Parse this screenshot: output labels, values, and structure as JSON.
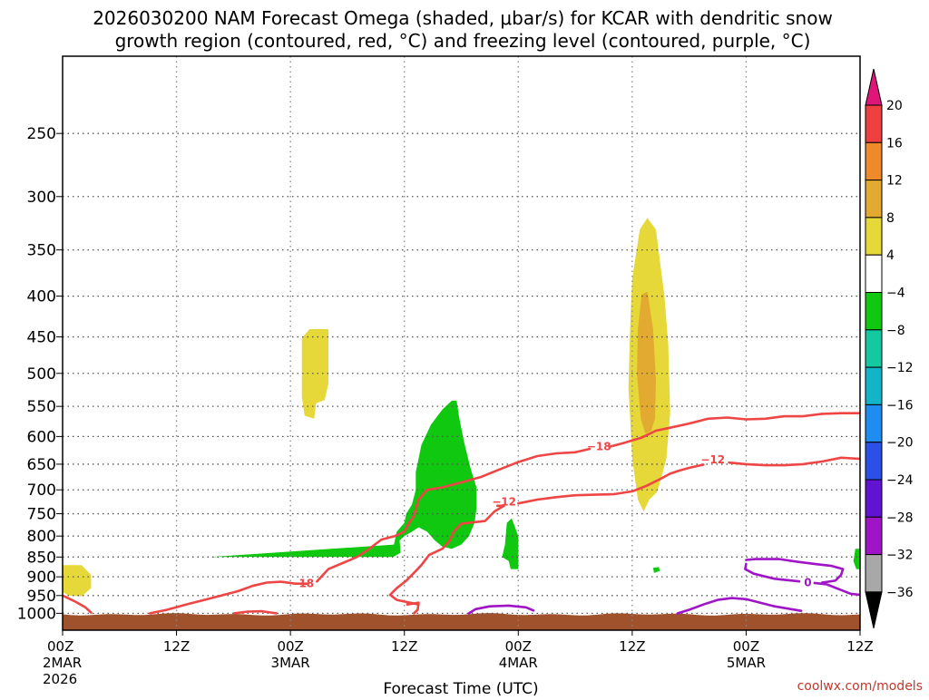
{
  "title": {
    "line1": "2026030200 NAM Forecast Omega (shaded, μbar/s) for KCAR with dendritic snow",
    "line2": "growth region (contoured, red, °C) and freezing level (contoured, purple, °C)"
  },
  "credit": "coolwx.com/models",
  "chart_data": {
    "type": "heatmap",
    "xlabel": "Forecast Time (UTC)",
    "ylabel": "",
    "x_hours_range": [
      0,
      84
    ],
    "y_pressure_range_hPa": [
      1050,
      200
    ],
    "y_scale": "log",
    "grid": true,
    "y_ticks": [
      250,
      300,
      350,
      400,
      450,
      500,
      550,
      600,
      650,
      700,
      750,
      800,
      850,
      900,
      950,
      1000
    ],
    "x_ticks": [
      {
        "hour": 0,
        "label": "00Z",
        "sub1": "2MAR",
        "sub2": "2026"
      },
      {
        "hour": 12,
        "label": "12Z",
        "sub1": "",
        "sub2": ""
      },
      {
        "hour": 24,
        "label": "00Z",
        "sub1": "3MAR",
        "sub2": ""
      },
      {
        "hour": 36,
        "label": "12Z",
        "sub1": "",
        "sub2": ""
      },
      {
        "hour": 48,
        "label": "00Z",
        "sub1": "4MAR",
        "sub2": ""
      },
      {
        "hour": 60,
        "label": "12Z",
        "sub1": "",
        "sub2": ""
      },
      {
        "hour": 72,
        "label": "00Z",
        "sub1": "5MAR",
        "sub2": ""
      },
      {
        "hour": 84,
        "label": "12Z",
        "sub1": "",
        "sub2": ""
      }
    ],
    "colorbar": {
      "labels": [
        "20",
        "16",
        "12",
        "8",
        "4",
        "−4",
        "−8",
        "−12",
        "−16",
        "−20",
        "−24",
        "−28",
        "−32",
        "−36"
      ],
      "colors": [
        "#ee4040",
        "#ee8a2a",
        "#e2aa30",
        "#e6d838",
        "#ffffff",
        "#0fc80f",
        "#14c8a0",
        "#12b4c8",
        "#1e8cf0",
        "#2a50e6",
        "#6014d2",
        "#a014c8",
        "#a8a8a8"
      ],
      "top_arrow_color": "#e0157a",
      "bottom_arrow_color": "#000000"
    },
    "contour_labels": [
      {
        "text": "−18",
        "hour": 25.2,
        "p": 918,
        "color": "#ee4545"
      },
      {
        "text": "−12",
        "hour": 46.5,
        "p": 725,
        "color": "#ee4545"
      },
      {
        "text": "−18",
        "hour": 56.5,
        "p": 618,
        "color": "#ee4545"
      },
      {
        "text": "−12",
        "hour": 68.5,
        "p": 642,
        "color": "#ee4545"
      },
      {
        "text": "0",
        "hour": 78.5,
        "p": 915,
        "color": "#a014c8"
      }
    ],
    "shaded_regions": [
      {
        "color": "#e6d838",
        "points": [
          [
            25.2,
            452
          ],
          [
            26.0,
            440
          ],
          [
            28.0,
            440
          ],
          [
            28.0,
            515
          ],
          [
            27.6,
            540
          ],
          [
            26.7,
            545
          ],
          [
            26.5,
            570
          ],
          [
            25.5,
            565
          ],
          [
            25.2,
            536
          ]
        ]
      },
      {
        "color": "#e6d838",
        "points": [
          [
            0,
            870
          ],
          [
            2.0,
            870
          ],
          [
            3.0,
            895
          ],
          [
            3.0,
            930
          ],
          [
            2.0,
            952
          ],
          [
            0.6,
            950
          ],
          [
            0,
            940
          ]
        ]
      },
      {
        "color": "#e6d838",
        "points": [
          [
            60.8,
            330
          ],
          [
            61.6,
            319
          ],
          [
            62.5,
            330
          ],
          [
            63.4,
            400
          ],
          [
            63.8,
            460
          ],
          [
            64.0,
            560
          ],
          [
            63.6,
            640
          ],
          [
            63.0,
            680
          ],
          [
            62.6,
            705
          ],
          [
            61.8,
            720
          ],
          [
            61.2,
            745
          ],
          [
            60.6,
            720
          ],
          [
            60.0,
            640
          ],
          [
            59.6,
            520
          ],
          [
            59.8,
            430
          ],
          [
            60.0,
            380
          ]
        ]
      },
      {
        "color": "#e2aa30",
        "points": [
          [
            61.0,
            398
          ],
          [
            61.6,
            395
          ],
          [
            62.2,
            440
          ],
          [
            62.5,
            510
          ],
          [
            62.4,
            570
          ],
          [
            62.0,
            590
          ],
          [
            61.4,
            595
          ],
          [
            60.9,
            570
          ],
          [
            60.5,
            500
          ],
          [
            60.6,
            440
          ]
        ]
      },
      {
        "color": "#0fc80f",
        "points": [
          [
            37.8,
            615
          ],
          [
            38.8,
            580
          ],
          [
            40.0,
            555
          ],
          [
            41.0,
            541
          ],
          [
            41.5,
            541
          ],
          [
            41.8,
            570
          ],
          [
            42.3,
            610
          ],
          [
            43.0,
            660
          ],
          [
            43.6,
            695
          ],
          [
            43.6,
            740
          ],
          [
            43.4,
            770
          ],
          [
            42.8,
            800
          ],
          [
            42.0,
            820
          ],
          [
            41.0,
            830
          ],
          [
            40.0,
            825
          ],
          [
            39.2,
            810
          ],
          [
            38.4,
            790
          ],
          [
            37.5,
            780
          ],
          [
            36.8,
            790
          ],
          [
            36.0,
            800
          ],
          [
            35.5,
            810
          ],
          [
            35.6,
            840
          ],
          [
            34.8,
            850
          ],
          [
            15.0,
            850
          ],
          [
            15.5,
            850
          ],
          [
            34.9,
            820
          ],
          [
            35.2,
            790
          ],
          [
            36.0,
            770
          ],
          [
            36.2,
            750
          ],
          [
            36.8,
            730
          ],
          [
            37.2,
            700
          ],
          [
            37.2,
            665
          ]
        ]
      },
      {
        "color": "#0fc80f",
        "points": [
          [
            46.8,
            770
          ],
          [
            47.3,
            760
          ],
          [
            48.0,
            800
          ],
          [
            48.0,
            880
          ],
          [
            47.2,
            880
          ],
          [
            47.0,
            860
          ],
          [
            46.3,
            850
          ],
          [
            46.6,
            820
          ]
        ]
      },
      {
        "color": "#0fc80f",
        "points": [
          [
            62.2,
            877
          ],
          [
            62.8,
            875
          ],
          [
            62.9,
            885
          ],
          [
            62.3,
            890
          ]
        ]
      },
      {
        "color": "#0fc80f",
        "points": [
          [
            83.5,
            830
          ],
          [
            84,
            830
          ],
          [
            84,
            880
          ],
          [
            83.6,
            880
          ],
          [
            83.3,
            860
          ]
        ]
      }
    ],
    "contours": [
      {
        "color": "#ee4545",
        "points": [
          [
            0,
            950
          ],
          [
            1.2,
            965
          ],
          [
            2.4,
            983
          ],
          [
            3.0,
            998
          ]
        ]
      },
      {
        "color": "#ee4545",
        "points": [
          [
            9.2,
            1000
          ],
          [
            11,
            990
          ],
          [
            13,
            975
          ],
          [
            16,
            955
          ],
          [
            18.5,
            938
          ],
          [
            20,
            924
          ],
          [
            21.5,
            915
          ],
          [
            23,
            913
          ],
          [
            24.5,
            918
          ],
          [
            25.8,
            918
          ]
        ]
      },
      {
        "color": "#ee4545",
        "points": [
          [
            26.8,
            912
          ],
          [
            28,
            880
          ],
          [
            30,
            860
          ],
          [
            31,
            850
          ],
          [
            32,
            835
          ],
          [
            33.6,
            808
          ],
          [
            35,
            800
          ],
          [
            36,
            790
          ],
          [
            36.5,
            770
          ],
          [
            37,
            755
          ],
          [
            37.5,
            720
          ],
          [
            38.4,
            700
          ],
          [
            40,
            695
          ],
          [
            42,
            685
          ],
          [
            44,
            675
          ],
          [
            46,
            660
          ],
          [
            48,
            646
          ],
          [
            50,
            635
          ],
          [
            52,
            630
          ],
          [
            54,
            628
          ],
          [
            55.5,
            622
          ]
        ]
      },
      {
        "color": "#ee4545",
        "points": [
          [
            57.6,
            618
          ],
          [
            59,
            612
          ],
          [
            61,
            602
          ],
          [
            62.5,
            590
          ],
          [
            64,
            585
          ],
          [
            66,
            578
          ],
          [
            68,
            570
          ],
          [
            70,
            568
          ],
          [
            72,
            571
          ],
          [
            74,
            570
          ],
          [
            76,
            566
          ],
          [
            78,
            566
          ],
          [
            80,
            562
          ],
          [
            82,
            561
          ],
          [
            84,
            561
          ]
        ]
      },
      {
        "color": "#ee4545",
        "points": [
          [
            18.1,
            1000
          ],
          [
            19.5,
            995
          ],
          [
            21,
            994
          ],
          [
            22.5,
            1000
          ]
        ]
      },
      {
        "color": "#ee4545",
        "points": [
          [
            36.3,
            975
          ],
          [
            37.5,
            970
          ],
          [
            37.4,
            990
          ],
          [
            37.0,
            1000
          ]
        ]
      },
      {
        "color": "#ee4545",
        "points": [
          [
            37.5,
            975
          ],
          [
            35.2,
            962
          ],
          [
            34.5,
            948
          ],
          [
            35.2,
            930
          ],
          [
            36.2,
            910
          ],
          [
            37.0,
            890
          ],
          [
            37.8,
            870
          ],
          [
            38.6,
            845
          ],
          [
            40.0,
            830
          ],
          [
            40.8,
            810
          ],
          [
            41.2,
            790
          ],
          [
            42,
            772
          ],
          [
            44.5,
            766
          ],
          [
            45.5,
            745
          ],
          [
            46.5,
            733
          ],
          [
            45.8,
            733
          ]
        ]
      },
      {
        "color": "#ee4545",
        "points": [
          [
            48.0,
            728
          ],
          [
            50,
            720
          ],
          [
            52,
            715
          ],
          [
            54,
            711
          ],
          [
            56,
            710
          ],
          [
            58,
            709
          ],
          [
            60,
            703
          ],
          [
            61.5,
            692
          ],
          [
            63,
            678
          ],
          [
            64,
            668
          ],
          [
            65,
            662
          ],
          [
            66,
            657
          ],
          [
            67.5,
            651
          ]
        ]
      },
      {
        "color": "#ee4545",
        "points": [
          [
            70.2,
            647
          ],
          [
            72,
            650
          ],
          [
            74,
            652
          ],
          [
            76,
            652
          ],
          [
            78,
            650
          ],
          [
            80,
            645
          ],
          [
            82,
            638
          ],
          [
            84,
            640
          ]
        ]
      },
      {
        "color": "#a014c8",
        "points": [
          [
            42.8,
            1000
          ],
          [
            43.5,
            988
          ],
          [
            45,
            980
          ],
          [
            47,
            978
          ],
          [
            48.8,
            983
          ],
          [
            49.6,
            992
          ]
        ]
      },
      {
        "color": "#a014c8",
        "points": [
          [
            64.8,
            1000
          ],
          [
            66,
            990
          ],
          [
            67.5,
            975
          ],
          [
            69,
            962
          ],
          [
            70.5,
            957
          ],
          [
            72,
            960
          ],
          [
            73.5,
            970
          ],
          [
            75,
            980
          ],
          [
            77.8,
            993
          ]
        ]
      },
      {
        "color": "#a014c8",
        "points": [
          [
            72.0,
            857
          ],
          [
            73,
            855
          ],
          [
            75.5,
            855
          ],
          [
            77.5,
            862
          ],
          [
            79.5,
            868
          ],
          [
            81,
            872
          ],
          [
            82.2,
            880
          ],
          [
            82.0,
            895
          ],
          [
            81.4,
            910
          ],
          [
            80,
            915
          ]
        ]
      },
      {
        "color": "#a014c8",
        "points": [
          [
            77.6,
            912
          ],
          [
            75,
            905
          ],
          [
            72.8,
            892
          ],
          [
            71.9,
            880
          ],
          [
            72.0,
            867
          ]
        ]
      },
      {
        "color": "#a014c8",
        "points": [
          [
            79.2,
            916
          ],
          [
            80.5,
            920
          ],
          [
            82,
            935
          ],
          [
            83,
            945
          ],
          [
            84,
            948
          ]
        ]
      }
    ],
    "terrain": {
      "color": "#a0522d",
      "pressure_top_hPa": 1003
    }
  }
}
